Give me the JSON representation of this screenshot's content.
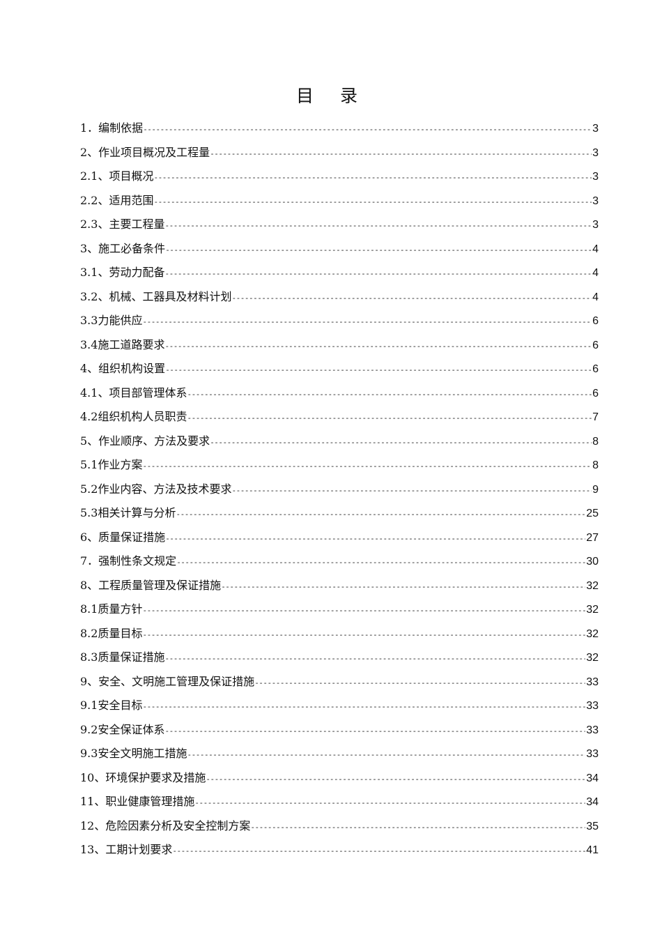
{
  "title": "目录",
  "entries": [
    {
      "label": "1．编制依据",
      "page": "3"
    },
    {
      "label": "2、作业项目概况及工程量",
      "page": "3"
    },
    {
      "label": "2.1、项目概况",
      "page": "3"
    },
    {
      "label": "2.2、适用范围",
      "page": "3"
    },
    {
      "label": "2.3、主要工程量",
      "page": "3"
    },
    {
      "label": "3、施工必备条件",
      "page": "4"
    },
    {
      "label": "3.1、劳动力配备",
      "page": "4"
    },
    {
      "label": "3.2、机械、工器具及材料计划",
      "page": "4"
    },
    {
      "label": "3.3力能供应",
      "page": "6"
    },
    {
      "label": "3.4施工道路要求",
      "page": "6"
    },
    {
      "label": "4、组织机构设置",
      "page": "6"
    },
    {
      "label": "4.1、项目部管理体系",
      "page": "6"
    },
    {
      "label": "4.2组织机构人员职责",
      "page": "7"
    },
    {
      "label": "5、作业顺序、方法及要求",
      "page": "8"
    },
    {
      "label": "5.1作业方案",
      "page": "8"
    },
    {
      "label": "5.2作业内容、方法及技术要求",
      "page": "9"
    },
    {
      "label": "5.3相关计算与分析",
      "page": "25"
    },
    {
      "label": "6、质量保证措施",
      "page": "27"
    },
    {
      "label": "7．强制性条文规定",
      "page": "30"
    },
    {
      "label": "8、工程质量管理及保证措施",
      "page": "32"
    },
    {
      "label": "8.1质量方针",
      "page": "32"
    },
    {
      "label": "8.2质量目标",
      "page": "32"
    },
    {
      "label": "8.3质量保证措施",
      "page": "32"
    },
    {
      "label": "9、安全、文明施工管理及保证措施",
      "page": "33"
    },
    {
      "label": "9.1安全目标",
      "page": "33"
    },
    {
      "label": "9.2安全保证体系",
      "page": "33"
    },
    {
      "label": "9.3安全文明施工措施",
      "page": "33"
    },
    {
      "label": "10、环境保护要求及措施",
      "page": "34"
    },
    {
      "label": "11、职业健康管理措施",
      "page": "34"
    },
    {
      "label": "12、危险因素分析及安全控制方案",
      "page": "35"
    },
    {
      "label": "13、工期计划要求",
      "page": "41"
    }
  ]
}
